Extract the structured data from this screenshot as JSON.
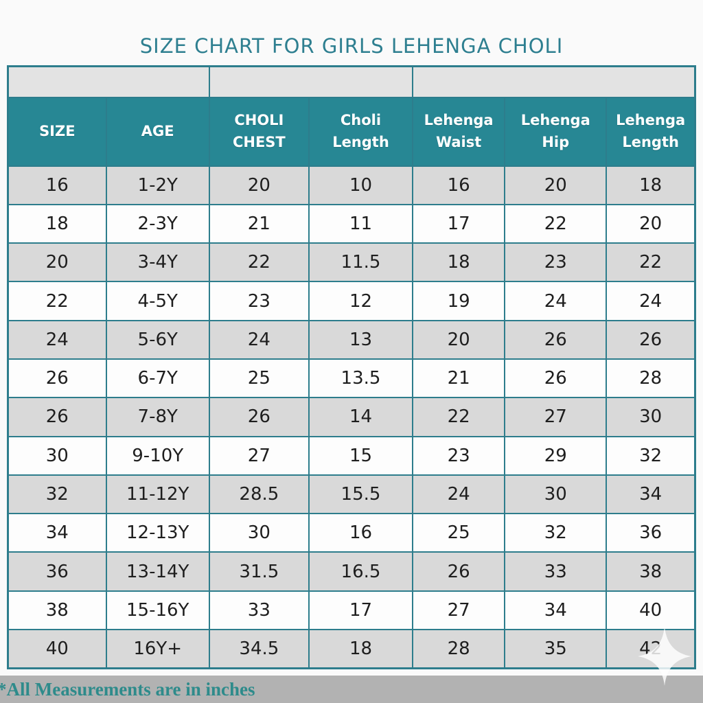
{
  "page": {
    "title": "SIZE CHART FOR GIRLS LEHENGA CHOLI",
    "footer_note": "*All Measurements are in inches"
  },
  "colors": {
    "teal_header": "#278794",
    "teal_border": "#2d7d8c",
    "teal_title": "#2e7f90",
    "teal_footer_text": "#2e8b8b",
    "row_gray": "#d9d9d9",
    "row_white": "#fdfdfd",
    "group_row_gray": "#e3e3e3",
    "footer_band_gray": "#b2b2b2",
    "cell_text": "#1e1e1e",
    "page_bg": "#fafafa"
  },
  "icons": {
    "sparkle": "four-pointed-star-white"
  },
  "chart_data": {
    "type": "table",
    "title": "SIZE CHART FOR GIRLS LEHENGA CHOLI",
    "note": "*All Measurements are in inches",
    "units": "inches",
    "column_groups": [
      {
        "span": 2
      },
      {
        "span": 2
      },
      {
        "span": 3
      }
    ],
    "columns": [
      "SIZE",
      "AGE",
      "CHOLI CHEST",
      "Choli Length",
      "Lehenga Waist",
      "Lehenga Hip",
      "Lehenga Length"
    ],
    "rows": [
      [
        "16",
        "1-2Y",
        "20",
        "10",
        "16",
        "20",
        "18"
      ],
      [
        "18",
        "2-3Y",
        "21",
        "11",
        "17",
        "22",
        "20"
      ],
      [
        "20",
        "3-4Y",
        "22",
        "11.5",
        "18",
        "23",
        "22"
      ],
      [
        "22",
        "4-5Y",
        "23",
        "12",
        "19",
        "24",
        "24"
      ],
      [
        "24",
        "5-6Y",
        "24",
        "13",
        "20",
        "26",
        "26"
      ],
      [
        "26",
        "6-7Y",
        "25",
        "13.5",
        "21",
        "26",
        "28"
      ],
      [
        "26",
        "7-8Y",
        "26",
        "14",
        "22",
        "27",
        "30"
      ],
      [
        "30",
        "9-10Y",
        "27",
        "15",
        "23",
        "29",
        "32"
      ],
      [
        "32",
        "11-12Y",
        "28.5",
        "15.5",
        "24",
        "30",
        "34"
      ],
      [
        "34",
        "12-13Y",
        "30",
        "16",
        "25",
        "32",
        "36"
      ],
      [
        "36",
        "13-14Y",
        "31.5",
        "16.5",
        "26",
        "33",
        "38"
      ],
      [
        "38",
        "15-16Y",
        "33",
        "17",
        "27",
        "34",
        "40"
      ],
      [
        "40",
        "16Y+",
        "34.5",
        "18",
        "28",
        "35",
        "42"
      ]
    ]
  }
}
